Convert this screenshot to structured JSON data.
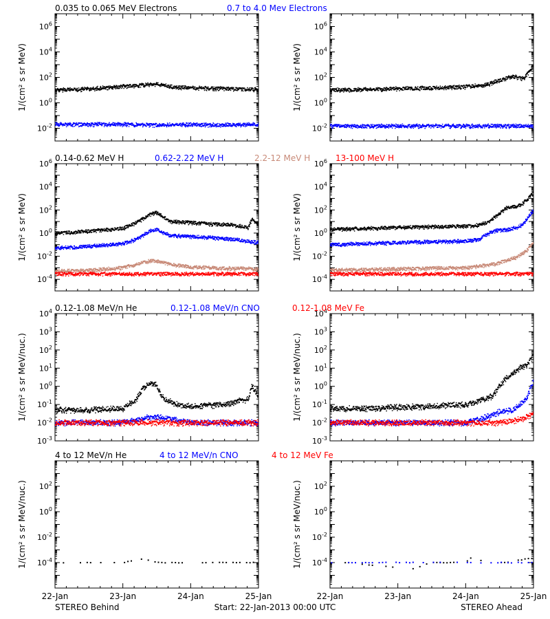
{
  "footer": {
    "left": "STEREO Behind",
    "center": "Start: 22-Jan-2013 00:00 UTC",
    "right": "STEREO Ahead"
  },
  "x_ticks": [
    "22-Jan",
    "23-Jan",
    "24-Jan",
    "25-Jan"
  ],
  "rows": [
    {
      "legend": [
        {
          "label": "0.035 to 0.065 MeV Electrons",
          "color": "#000000"
        },
        {
          "label": "0.7 to 4.0 Mev Electrons",
          "color": "#0000ff"
        }
      ],
      "ylabel": "1/(cm² s sr MeV)"
    },
    {
      "legend": [
        {
          "label": "0.14-0.62 MeV H",
          "color": "#000000"
        },
        {
          "label": "0.62-2.22 MeV H",
          "color": "#0000ff"
        },
        {
          "label": "2.2-12 MeV H",
          "color": "#c88a78"
        },
        {
          "label": "13-100 MeV H",
          "color": "#ff0000"
        }
      ],
      "ylabel": "1/(cm² s sr MeV)"
    },
    {
      "legend": [
        {
          "label": "0.12-1.08 MeV/n He",
          "color": "#000000"
        },
        {
          "label": "0.12-1.08 MeV/n CNO",
          "color": "#0000ff"
        },
        {
          "label": "0.12-1.08 MeV Fe",
          "color": "#ff0000"
        }
      ],
      "ylabel": "1/(cm² s sr MeV/nuc.)"
    },
    {
      "legend": [
        {
          "label": "4 to 12 MeV/n He",
          "color": "#000000"
        },
        {
          "label": "4 to 12 MeV/n CNO",
          "color": "#0000ff"
        },
        {
          "label": "4 to 12 MeV Fe",
          "color": "#ff0000"
        }
      ],
      "ylabel": "1/(cm² s sr MeV/nuc.)"
    }
  ],
  "chart_data": [
    {
      "type": "scatter",
      "spacecraft": "STEREO Behind",
      "x_unit": "days since 22-Jan-2013 00:00 UTC",
      "xlim": [
        0,
        3
      ],
      "y_scale": "log",
      "ylim": [
        0.001,
        10000000
      ],
      "y_ticks": [
        0.01,
        1,
        100,
        10000,
        1000000
      ],
      "series": [
        {
          "name": "0.035 to 0.065 MeV Electrons",
          "color": "#000000",
          "x": [
            0,
            0.5,
            1,
            1.3,
            1.5,
            1.7,
            2,
            2.5,
            3
          ],
          "y": [
            10,
            12,
            20,
            25,
            30,
            18,
            15,
            13,
            11
          ]
        },
        {
          "name": "0.7 to 4.0 Mev Electrons",
          "color": "#0000ff",
          "x": [
            0,
            0.5,
            1,
            1.5,
            2,
            2.5,
            3
          ],
          "y": [
            0.02,
            0.02,
            0.02,
            0.018,
            0.02,
            0.018,
            0.02
          ]
        }
      ]
    },
    {
      "type": "scatter",
      "spacecraft": "STEREO Ahead",
      "x_unit": "days since 22-Jan-2013 00:00 UTC",
      "xlim": [
        0,
        3
      ],
      "y_scale": "log",
      "ylim": [
        0.001,
        10000000
      ],
      "y_ticks": [
        0.01,
        1,
        100,
        10000,
        1000000
      ],
      "series": [
        {
          "name": "0.035 to 0.065 MeV Electrons",
          "color": "#000000",
          "x": [
            0,
            0.5,
            1,
            1.5,
            2,
            2.3,
            2.5,
            2.7,
            2.85,
            3
          ],
          "y": [
            10,
            11,
            13,
            15,
            18,
            25,
            60,
            120,
            80,
            800
          ]
        },
        {
          "name": "0.7 to 4.0 Mev Electrons",
          "color": "#0000ff",
          "x": [
            0,
            0.5,
            1,
            1.5,
            2,
            2.5,
            3
          ],
          "y": [
            0.015,
            0.015,
            0.015,
            0.015,
            0.015,
            0.015,
            0.015
          ]
        }
      ]
    },
    {
      "type": "scatter",
      "spacecraft": "STEREO Behind",
      "x_unit": "days since 22-Jan-2013 00:00 UTC",
      "xlim": [
        0,
        3
      ],
      "y_scale": "log",
      "ylim": [
        1e-05,
        1000000
      ],
      "y_ticks": [
        0.0001,
        0.01,
        1,
        100,
        10000,
        1000000
      ],
      "series": [
        {
          "name": "0.14-0.62 MeV H",
          "color": "#000000",
          "x": [
            0,
            0.3,
            0.6,
            1,
            1.2,
            1.4,
            1.5,
            1.7,
            2,
            2.3,
            2.6,
            2.85,
            2.9,
            3
          ],
          "y": [
            1,
            1.2,
            1.6,
            2.5,
            8,
            40,
            60,
            10,
            8,
            6,
            5,
            3,
            15,
            5
          ]
        },
        {
          "name": "0.62-2.22 MeV H",
          "color": "#0000ff",
          "x": [
            0,
            0.3,
            0.6,
            1,
            1.2,
            1.4,
            1.5,
            1.7,
            2,
            2.3,
            2.6,
            2.85,
            3
          ],
          "y": [
            0.05,
            0.06,
            0.08,
            0.12,
            0.3,
            1.5,
            2,
            0.6,
            0.5,
            0.4,
            0.3,
            0.2,
            0.15
          ]
        },
        {
          "name": "2.2-12 MeV H",
          "color": "#c88a78",
          "x": [
            0,
            0.5,
            1,
            1.2,
            1.4,
            1.5,
            1.7,
            2,
            2.5,
            3
          ],
          "y": [
            0.0005,
            0.0006,
            0.001,
            0.002,
            0.004,
            0.004,
            0.002,
            0.0012,
            0.0009,
            0.0008
          ]
        },
        {
          "name": "13-100 MeV H",
          "color": "#ff0000",
          "x": [
            0,
            0.5,
            1,
            1.5,
            2,
            2.5,
            3
          ],
          "y": [
            0.0003,
            0.0003,
            0.0003,
            0.0003,
            0.0003,
            0.0003,
            0.0003
          ]
        }
      ]
    },
    {
      "type": "scatter",
      "spacecraft": "STEREO Ahead",
      "x_unit": "days since 22-Jan-2013 00:00 UTC",
      "xlim": [
        0,
        3
      ],
      "y_scale": "log",
      "ylim": [
        1e-05,
        1000000
      ],
      "y_ticks": [
        0.0001,
        0.01,
        1,
        100,
        10000,
        1000000
      ],
      "series": [
        {
          "name": "0.14-0.62 MeV H",
          "color": "#000000",
          "x": [
            0,
            0.5,
            1,
            1.5,
            2,
            2.2,
            2.35,
            2.5,
            2.6,
            2.75,
            2.85,
            3
          ],
          "y": [
            2,
            2.5,
            3,
            3.5,
            4,
            5,
            10,
            50,
            150,
            200,
            400,
            3000
          ]
        },
        {
          "name": "0.62-2.22 MeV H",
          "color": "#0000ff",
          "x": [
            0,
            0.5,
            1,
            1.5,
            2,
            2.2,
            2.4,
            2.6,
            2.75,
            2.85,
            3
          ],
          "y": [
            0.1,
            0.12,
            0.15,
            0.18,
            0.2,
            0.3,
            1.5,
            2,
            3,
            6,
            100
          ]
        },
        {
          "name": "2.2-12 MeV H",
          "color": "#c88a78",
          "x": [
            0,
            0.5,
            1,
            1.5,
            2,
            2.4,
            2.6,
            2.75,
            2.9,
            3
          ],
          "y": [
            0.0006,
            0.0007,
            0.0008,
            0.0009,
            0.001,
            0.002,
            0.004,
            0.008,
            0.03,
            0.15
          ]
        },
        {
          "name": "13-100 MeV H",
          "color": "#ff0000",
          "x": [
            0,
            0.5,
            1,
            1.5,
            2,
            2.5,
            3
          ],
          "y": [
            0.0003,
            0.0003,
            0.0003,
            0.0003,
            0.0003,
            0.0003,
            0.0003
          ]
        }
      ]
    },
    {
      "type": "scatter",
      "spacecraft": "STEREO Behind",
      "x_unit": "days since 22-Jan-2013 00:00 UTC",
      "xlim": [
        0,
        3
      ],
      "y_scale": "log",
      "ylim": [
        0.001,
        10000
      ],
      "y_ticks": [
        0.001,
        0.01,
        0.1,
        1,
        10,
        100,
        1000,
        10000
      ],
      "series": [
        {
          "name": "0.12-1.08 MeV/n He",
          "color": "#000000",
          "x": [
            0,
            0.5,
            1,
            1.2,
            1.3,
            1.4,
            1.5,
            1.6,
            1.8,
            2,
            2.5,
            2.85,
            2.9,
            3
          ],
          "y": [
            0.05,
            0.05,
            0.06,
            0.2,
            0.8,
            1.5,
            1.2,
            0.2,
            0.1,
            0.08,
            0.1,
            0.2,
            1,
            0.3
          ]
        },
        {
          "name": "0.12-1.08 MeV/n CNO",
          "color": "#0000ff",
          "x": [
            0,
            0.5,
            1,
            1.4,
            1.5,
            2,
            2.5,
            3
          ],
          "y": [
            0.01,
            0.01,
            0.01,
            0.02,
            0.02,
            0.01,
            0.01,
            0.01
          ]
        },
        {
          "name": "0.12-1.08 MeV Fe",
          "color": "#ff0000",
          "x": [
            0,
            0.5,
            1,
            1.5,
            2,
            2.5,
            3
          ],
          "y": [
            0.01,
            0.01,
            0.01,
            0.01,
            0.01,
            0.01,
            0.01
          ]
        }
      ]
    },
    {
      "type": "scatter",
      "spacecraft": "STEREO Ahead",
      "x_unit": "days since 22-Jan-2013 00:00 UTC",
      "xlim": [
        0,
        3
      ],
      "y_scale": "log",
      "ylim": [
        0.001,
        10000
      ],
      "y_ticks": [
        0.001,
        0.01,
        0.1,
        1,
        10,
        100,
        1000,
        10000
      ],
      "series": [
        {
          "name": "0.12-1.08 MeV/n He",
          "color": "#000000",
          "x": [
            0,
            0.5,
            1,
            1.5,
            2,
            2.2,
            2.4,
            2.5,
            2.6,
            2.7,
            2.8,
            2.9,
            3
          ],
          "y": [
            0.06,
            0.06,
            0.07,
            0.08,
            0.1,
            0.15,
            0.3,
            1,
            3,
            5,
            10,
            15,
            50
          ]
        },
        {
          "name": "0.12-1.08 MeV/n CNO",
          "color": "#0000ff",
          "x": [
            0,
            0.5,
            1,
            1.5,
            2,
            2.3,
            2.5,
            2.7,
            2.9,
            3
          ],
          "y": [
            0.01,
            0.01,
            0.01,
            0.01,
            0.01,
            0.02,
            0.04,
            0.05,
            0.2,
            2
          ]
        },
        {
          "name": "0.12-1.08 MeV Fe",
          "color": "#ff0000",
          "x": [
            0,
            0.5,
            1,
            1.5,
            2,
            2.5,
            2.8,
            3
          ],
          "y": [
            0.01,
            0.01,
            0.01,
            0.01,
            0.01,
            0.01,
            0.015,
            0.03
          ]
        }
      ]
    },
    {
      "type": "scatter",
      "spacecraft": "STEREO Behind",
      "x_unit": "days since 22-Jan-2013 00:00 UTC",
      "xlim": [
        0,
        3
      ],
      "y_scale": "log",
      "ylim": [
        1e-06,
        10000
      ],
      "y_ticks": [
        0.0001,
        0.01,
        1,
        100
      ],
      "series": [
        {
          "name": "4 to 12 MeV/n He",
          "color": "#000000",
          "x": [
            0,
            0.5,
            1,
            1.3,
            1.5,
            2,
            2.5,
            3
          ],
          "y": [
            0.0001,
            0.0001,
            0.0001,
            0.0002,
            0.0001,
            0.0001,
            0.0001,
            0.0001
          ]
        },
        {
          "name": "4 to 12 MeV/n CNO",
          "color": "#0000ff",
          "x": [],
          "y": []
        },
        {
          "name": "4 to 12 MeV Fe",
          "color": "#ff0000",
          "x": [],
          "y": []
        }
      ]
    },
    {
      "type": "scatter",
      "spacecraft": "STEREO Ahead",
      "x_unit": "days since 22-Jan-2013 00:00 UTC",
      "xlim": [
        0,
        3
      ],
      "y_scale": "log",
      "ylim": [
        1e-06,
        10000
      ],
      "y_ticks": [
        0.0001,
        0.01,
        1,
        100
      ],
      "series": [
        {
          "name": "4 to 12 MeV/n He",
          "color": "#000000",
          "x": [
            0.3,
            0.8,
            1.2,
            1.5,
            2,
            2.1,
            2.3,
            2.6,
            2.9
          ],
          "y": [
            0.0001,
            5e-05,
            3e-05,
            0.0001,
            0.0001,
            0.0003,
            0.0001,
            0.0001,
            0.0002
          ]
        },
        {
          "name": "4 to 12 MeV/n CNO",
          "color": "#0000ff",
          "x": [
            0.1
          ],
          "y": [
            0.0001
          ]
        },
        {
          "name": "4 to 12 MeV Fe",
          "color": "#ff0000",
          "x": [],
          "y": []
        }
      ]
    }
  ]
}
